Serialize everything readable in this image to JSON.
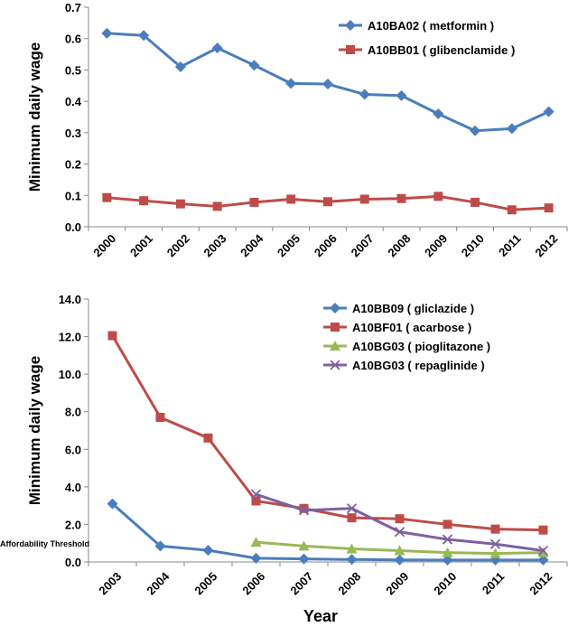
{
  "chart_data": [
    {
      "type": "line",
      "ylabel": "Minimum daily wage",
      "xlabel": "",
      "ylim": [
        0,
        0.7
      ],
      "yticks": [
        "0.0",
        "0.1",
        "0.2",
        "0.3",
        "0.4",
        "0.5",
        "0.6",
        "0.7"
      ],
      "categories": [
        "2000",
        "2001",
        "2002",
        "2003",
        "2004",
        "2005",
        "2006",
        "2007",
        "2008",
        "2009",
        "2010",
        "2011",
        "2012"
      ],
      "legend_position": "top-right",
      "series": [
        {
          "name": "A10BA02 ( metformin )",
          "color": "#4a7ebb",
          "marker": "diamond",
          "values": [
            0.617,
            0.61,
            0.51,
            0.57,
            0.515,
            0.457,
            0.455,
            0.422,
            0.418,
            0.36,
            0.306,
            0.313,
            0.367
          ]
        },
        {
          "name": "A10BB01 ( glibenclamide )",
          "color": "#be4b48",
          "marker": "square",
          "values": [
            0.093,
            0.083,
            0.073,
            0.065,
            0.078,
            0.088,
            0.08,
            0.088,
            0.09,
            0.097,
            0.078,
            0.054,
            0.06
          ]
        }
      ]
    },
    {
      "type": "line",
      "ylabel": "Minimum daily wage",
      "xlabel": "Year",
      "ylim": [
        0,
        14
      ],
      "yticks": [
        "0.0",
        "2.0",
        "4.0",
        "6.0",
        "8.0",
        "10.0",
        "12.0",
        "14.0"
      ],
      "categories": [
        "2003",
        "2004",
        "2005",
        "2006",
        "2007",
        "2008",
        "2009",
        "2010",
        "2011",
        "2012"
      ],
      "legend_position": "top-right",
      "annotation": "Affordability Threshold",
      "series": [
        {
          "name": "A10BB09 ( gliclazide )",
          "color": "#4a7ebb",
          "marker": "diamond",
          "values": [
            3.1,
            0.85,
            0.62,
            0.2,
            0.16,
            0.13,
            0.11,
            0.1,
            0.1,
            0.1
          ]
        },
        {
          "name": "A10BF01 ( acarbose )",
          "color": "#be4b48",
          "marker": "square",
          "values": [
            12.05,
            7.7,
            6.6,
            3.25,
            2.85,
            2.35,
            2.3,
            2.0,
            1.75,
            1.7
          ]
        },
        {
          "name": "A10BG03 ( pioglitazone )",
          "color": "#98b954",
          "marker": "triangle",
          "values": [
            null,
            null,
            null,
            1.05,
            0.85,
            0.7,
            0.6,
            0.5,
            0.45,
            0.5
          ]
        },
        {
          "name": "A10BG03 ( repaglinide )",
          "color": "#7d60a0",
          "marker": "x",
          "values": [
            null,
            null,
            null,
            3.6,
            2.75,
            2.85,
            1.6,
            1.2,
            0.95,
            0.6
          ]
        }
      ]
    }
  ]
}
